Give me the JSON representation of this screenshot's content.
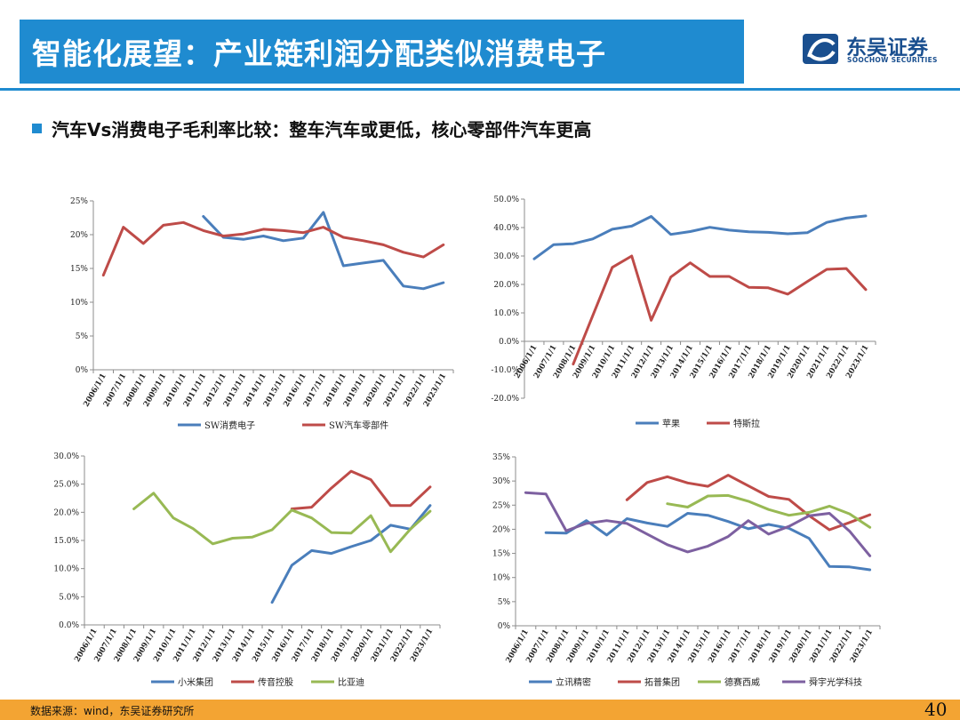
{
  "header": {
    "title": "智能化展望：产业链利润分配类似消费电子",
    "logo_cn": "东吴证券",
    "logo_en": "SOOCHOW SECURITIES"
  },
  "subtitle": "汽车Vs消费电子毛利率比较：整车汽车或更低，核心零部件汽车更高",
  "footer": {
    "source": "数据来源：wind，东吴证券研究所",
    "page": "40"
  },
  "colors": {
    "brand_blue": "#1f8bd0",
    "footer_orange": "#f3a433",
    "series_blue": "#4a7ebb",
    "series_red": "#be4b48",
    "series_green": "#98b954",
    "series_purple": "#7d60a0"
  },
  "chart_data": [
    {
      "type": "line",
      "categories": [
        "2006/1/1",
        "2007/1/1",
        "2008/1/1",
        "2009/1/1",
        "2010/1/1",
        "2011/1/1",
        "2012/1/1",
        "2013/1/1",
        "2014/1/1",
        "2015/1/1",
        "2016/1/1",
        "2017/1/1",
        "2018/1/1",
        "2019/1/1",
        "2020/1/1",
        "2021/1/1",
        "2022/1/1",
        "2023/1/1"
      ],
      "ylim": [
        0,
        25
      ],
      "yticks": [
        "0%",
        "5%",
        "10%",
        "15%",
        "20%",
        "25%"
      ],
      "grid": false,
      "legend_position": "bottom",
      "series": [
        {
          "name": "SW消费电子",
          "color": "#4a7ebb",
          "values": [
            null,
            null,
            null,
            null,
            null,
            22.7,
            19.6,
            19.3,
            19.8,
            19.1,
            19.5,
            23.3,
            15.4,
            15.8,
            16.2,
            12.4,
            12.0,
            12.9
          ]
        },
        {
          "name": "SW汽车零部件",
          "color": "#be4b48",
          "values": [
            14.0,
            21.1,
            18.7,
            21.4,
            21.8,
            20.6,
            19.8,
            20.1,
            20.8,
            20.6,
            20.3,
            21.1,
            19.6,
            19.1,
            18.5,
            17.4,
            16.7,
            18.5
          ]
        }
      ]
    },
    {
      "type": "line",
      "categories": [
        "2006/1/1",
        "2007/1/1",
        "2008/1/1",
        "2009/1/1",
        "2010/1/1",
        "2011/1/1",
        "2012/1/1",
        "2013/1/1",
        "2014/1/1",
        "2015/1/1",
        "2016/1/1",
        "2017/1/1",
        "2018/1/1",
        "2019/1/1",
        "2020/1/1",
        "2021/1/1",
        "2022/1/1",
        "2023/1/1"
      ],
      "ylim": [
        -20,
        50
      ],
      "yticks": [
        "-20.0%",
        "-10.0%",
        "0.0%",
        "10.0%",
        "20.0%",
        "30.0%",
        "40.0%",
        "50.0%"
      ],
      "grid": false,
      "legend_position": "bottom",
      "series": [
        {
          "name": "苹果",
          "color": "#4a7ebb",
          "values": [
            29.0,
            34.0,
            34.3,
            36.0,
            39.4,
            40.5,
            43.9,
            37.6,
            38.6,
            40.1,
            39.1,
            38.5,
            38.3,
            37.8,
            38.2,
            41.8,
            43.3,
            44.1
          ]
        },
        {
          "name": "特斯拉",
          "color": "#be4b48",
          "values": [
            null,
            null,
            -8.0,
            9.0,
            26.0,
            30.0,
            7.4,
            22.6,
            27.6,
            22.8,
            22.8,
            19.0,
            18.8,
            16.6,
            21.0,
            25.3,
            25.6,
            18.2
          ]
        }
      ]
    },
    {
      "type": "line",
      "categories": [
        "2006/1/1",
        "2007/1/1",
        "2008/1/1",
        "2009/1/1",
        "2010/1/1",
        "2011/1/1",
        "2012/1/1",
        "2013/1/1",
        "2014/1/1",
        "2015/1/1",
        "2016/1/1",
        "2017/1/1",
        "2018/1/1",
        "2019/1/1",
        "2020/1/1",
        "2021/1/1",
        "2022/1/1",
        "2023/1/1"
      ],
      "ylim": [
        0,
        30
      ],
      "yticks": [
        "0.0%",
        "5.0%",
        "10.0%",
        "15.0%",
        "20.0%",
        "25.0%",
        "30.0%"
      ],
      "grid": false,
      "legend_position": "bottom",
      "series": [
        {
          "name": "小米集团",
          "color": "#4a7ebb",
          "values": [
            null,
            null,
            null,
            null,
            null,
            null,
            null,
            null,
            null,
            4.0,
            10.6,
            13.2,
            12.7,
            13.9,
            15.0,
            17.7,
            17.0,
            21.2
          ]
        },
        {
          "name": "传音控股",
          "color": "#be4b48",
          "values": [
            null,
            null,
            null,
            null,
            null,
            null,
            null,
            null,
            null,
            null,
            20.6,
            20.9,
            24.3,
            27.3,
            25.8,
            21.2,
            21.2,
            24.5
          ]
        },
        {
          "name": "比亚迪",
          "color": "#98b954",
          "values": [
            null,
            null,
            20.6,
            23.4,
            19.0,
            17.1,
            14.4,
            15.4,
            15.6,
            16.9,
            20.4,
            19.0,
            16.4,
            16.3,
            19.4,
            13.0,
            17.0,
            20.2
          ]
        }
      ]
    },
    {
      "type": "line",
      "categories": [
        "2006/1/1",
        "2007/1/1",
        "2008/1/1",
        "2009/1/1",
        "2010/1/1",
        "2011/1/1",
        "2012/1/1",
        "2013/1/1",
        "2014/1/1",
        "2015/1/1",
        "2016/1/1",
        "2017/1/1",
        "2018/1/1",
        "2019/1/1",
        "2020/1/1",
        "2021/1/1",
        "2022/1/1",
        "2023/1/1"
      ],
      "ylim": [
        0,
        35
      ],
      "yticks": [
        "0%",
        "5%",
        "10%",
        "15%",
        "20%",
        "25%",
        "30%",
        "35%"
      ],
      "grid": false,
      "legend_position": "bottom",
      "series": [
        {
          "name": "立讯精密",
          "color": "#4a7ebb",
          "values": [
            null,
            19.3,
            19.2,
            21.8,
            18.8,
            22.2,
            21.3,
            20.6,
            23.3,
            22.9,
            21.6,
            20.1,
            21.0,
            20.2,
            18.1,
            12.3,
            12.2,
            11.6
          ]
        },
        {
          "name": "拓普集团",
          "color": "#be4b48",
          "values": [
            null,
            null,
            null,
            null,
            null,
            26.1,
            29.7,
            30.9,
            29.6,
            28.9,
            31.2,
            29.0,
            26.8,
            26.2,
            22.8,
            19.9,
            21.4,
            23.0
          ]
        },
        {
          "name": "德赛西威",
          "color": "#98b954",
          "values": [
            null,
            null,
            null,
            null,
            null,
            null,
            null,
            25.3,
            24.6,
            26.9,
            27.0,
            25.8,
            24.1,
            22.9,
            23.5,
            24.8,
            23.2,
            20.4
          ]
        },
        {
          "name": "舜宇光学科技",
          "color": "#7d60a0",
          "values": [
            27.6,
            27.3,
            19.7,
            21.2,
            21.8,
            21.2,
            19.0,
            16.8,
            15.3,
            16.5,
            18.5,
            21.8,
            19.0,
            20.6,
            22.8,
            23.3,
            19.6,
            14.5
          ]
        }
      ]
    }
  ]
}
